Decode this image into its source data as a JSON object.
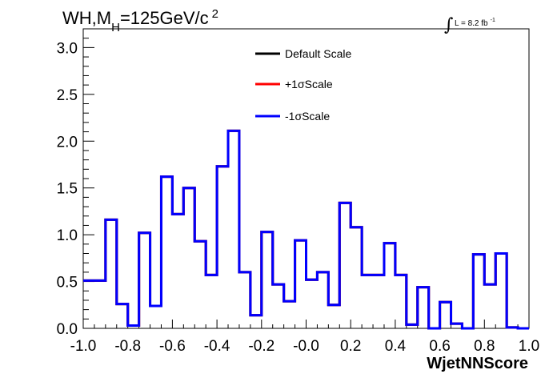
{
  "chart_data": {
    "type": "line",
    "title": "WH,M_H=125GeV/c^2",
    "title_parts": {
      "main": "WH,M",
      "subscript": "H",
      "rest": "=125GeV/c",
      "superscript": "2"
    },
    "luminosity_label": {
      "integral": "∫",
      "text": "L = 8.2 fb",
      "superscript": "-1"
    },
    "xlabel": "WjetNNScore",
    "ylabel": "",
    "xlim": [
      -1.0,
      1.0
    ],
    "ylim": [
      0,
      3.2
    ],
    "x_ticks": [
      "-1.0",
      "-0.8",
      "-0.6",
      "-0.4",
      "-0.2",
      "-0.0",
      "0.2",
      "0.4",
      "0.6",
      "0.8",
      "1.0"
    ],
    "y_ticks": [
      "0.0",
      "0.5",
      "1.0",
      "1.5",
      "2.0",
      "2.5",
      "3.0"
    ],
    "bin_edges": [
      -1.0,
      -0.95,
      -0.9,
      -0.85,
      -0.8,
      -0.75,
      -0.7,
      -0.65,
      -0.6,
      -0.55,
      -0.5,
      -0.45,
      -0.4,
      -0.35,
      -0.3,
      -0.25,
      -0.2,
      -0.15,
      -0.1,
      -0.05,
      0.0,
      0.05,
      0.1,
      0.15,
      0.2,
      0.25,
      0.3,
      0.35,
      0.4,
      0.45,
      0.5,
      0.55,
      0.6,
      0.65,
      0.7,
      0.75,
      0.8,
      0.85,
      0.9,
      0.95,
      1.0
    ],
    "series": [
      {
        "name": "Default Scale",
        "color": "#000000",
        "values": [
          0.51,
          0.51,
          1.16,
          0.26,
          0.03,
          1.02,
          0.24,
          1.62,
          1.22,
          1.5,
          0.93,
          0.57,
          1.73,
          2.11,
          0.6,
          0.14,
          1.03,
          0.47,
          0.29,
          0.94,
          0.52,
          0.6,
          0.25,
          1.34,
          1.08,
          0.57,
          0.57,
          0.91,
          0.57,
          0.04,
          0.44,
          0.0,
          0.28,
          0.05,
          0.0,
          0.79,
          0.47,
          0.8,
          0.01,
          0.0
        ]
      },
      {
        "name": "+1σScale",
        "color": "#ff0000",
        "values": [
          0.51,
          0.51,
          1.16,
          0.26,
          0.03,
          1.02,
          0.24,
          1.62,
          1.22,
          1.5,
          0.93,
          0.57,
          1.73,
          2.11,
          0.6,
          0.14,
          1.03,
          0.47,
          0.29,
          0.94,
          0.52,
          0.6,
          0.25,
          1.34,
          1.08,
          0.57,
          0.57,
          0.91,
          0.57,
          0.04,
          0.44,
          0.0,
          0.28,
          0.05,
          0.0,
          0.79,
          0.47,
          0.8,
          0.01,
          0.0
        ]
      },
      {
        "name": "-1σScale",
        "color": "#0000ff",
        "values": [
          0.51,
          0.51,
          1.16,
          0.26,
          0.03,
          1.02,
          0.24,
          1.62,
          1.22,
          1.5,
          0.93,
          0.57,
          1.73,
          2.11,
          0.6,
          0.14,
          1.03,
          0.47,
          0.29,
          0.94,
          0.52,
          0.6,
          0.25,
          1.34,
          1.08,
          0.57,
          0.57,
          0.91,
          0.57,
          0.04,
          0.44,
          0.0,
          0.28,
          0.05,
          0.0,
          0.79,
          0.47,
          0.8,
          0.01,
          0.0
        ]
      }
    ],
    "legend_position": "top-center",
    "grid": false
  }
}
